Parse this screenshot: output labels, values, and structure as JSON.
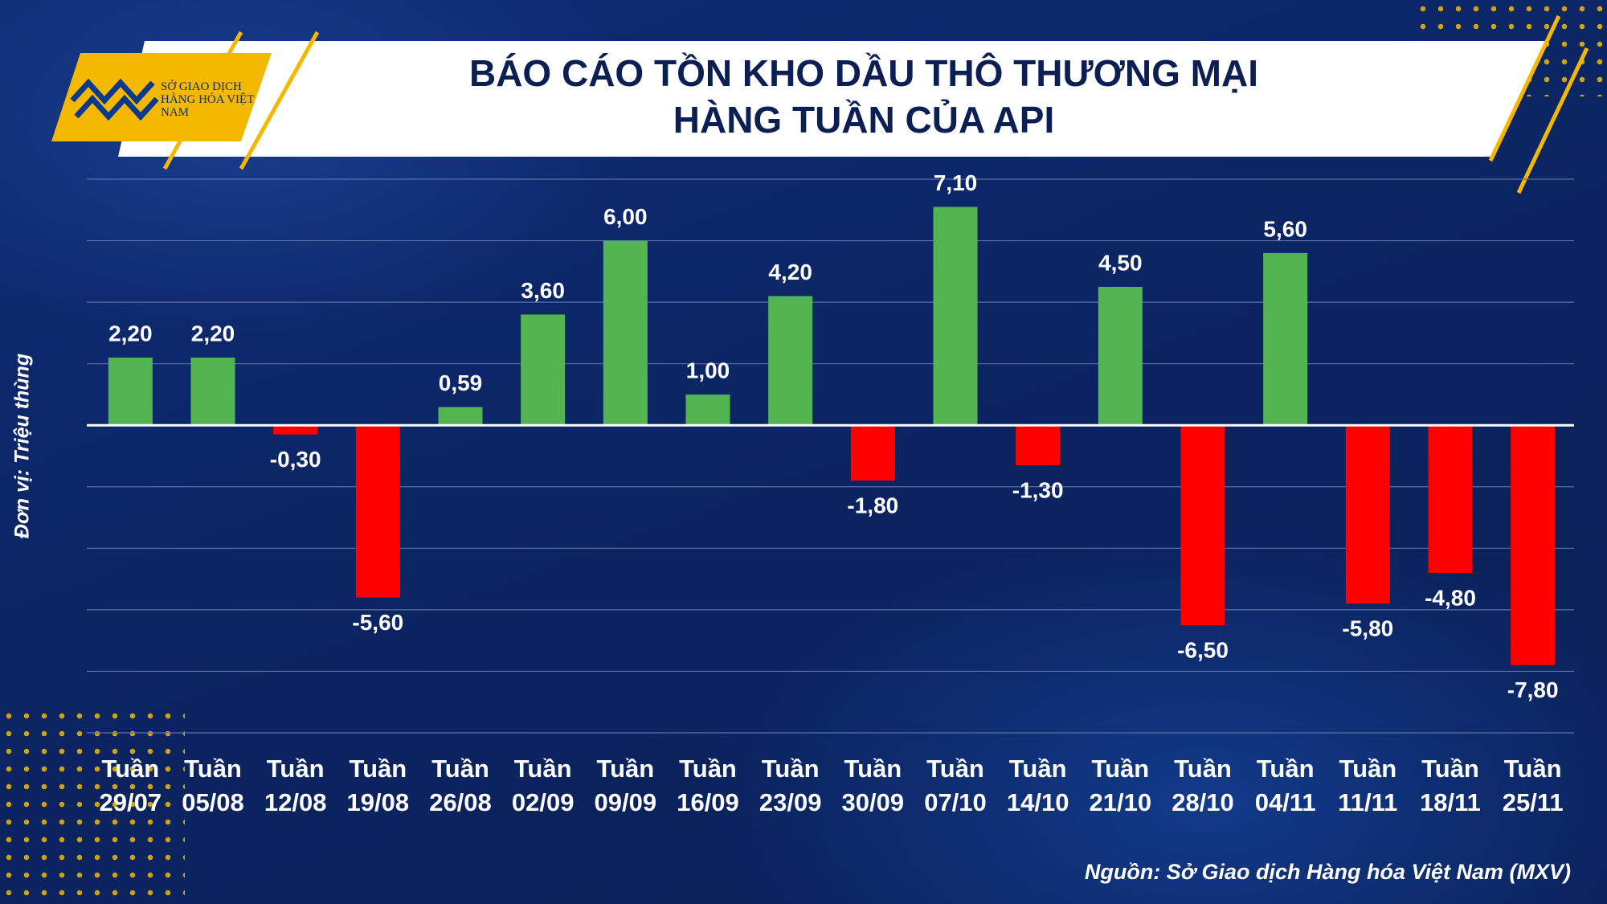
{
  "logo_text": "SỞ GIAO DỊCH HÀNG HÓA VIỆT NAM",
  "chart_data": {
    "type": "bar",
    "title": "BÁO CÁO TỒN KHO DẦU THÔ THƯƠNG MẠI\nHÀNG TUẦN CỦA API",
    "y_label": "Đơn vị: Triệu thùng",
    "source": "Nguồn: Sở Giao dịch Hàng hóa Việt Nam (MXV)",
    "categories": [
      "Tuần 29/07",
      "Tuần 05/08",
      "Tuần 12/08",
      "Tuần 19/08",
      "Tuần 26/08",
      "Tuần 02/09",
      "Tuần 09/09",
      "Tuần 16/09",
      "Tuần 23/09",
      "Tuần 30/09",
      "Tuần 07/10",
      "Tuần 14/10",
      "Tuần 21/10",
      "Tuần 28/10",
      "Tuần 04/11",
      "Tuần 11/11",
      "Tuần 18/11",
      "Tuần 25/11"
    ],
    "values": [
      2.2,
      2.2,
      -0.3,
      -5.6,
      0.59,
      3.6,
      6.0,
      1.0,
      4.2,
      -1.8,
      7.1,
      -1.3,
      4.5,
      -6.5,
      5.6,
      -5.8,
      -4.8,
      -7.8
    ],
    "value_labels": [
      "2,20",
      "2,20",
      "-0,30",
      "-5,60",
      "0,59",
      "3,60",
      "6,00",
      "1,00",
      "4,20",
      "-1,80",
      "7,10",
      "-1,30",
      "4,50",
      "-6,50",
      "5,60",
      "-5,80",
      "-4,80",
      "-7,80"
    ],
    "positive_color": "#52b552",
    "negative_color": "#ff0000",
    "ylim": [
      -10,
      8
    ],
    "yticks": [
      -10,
      -8,
      -6,
      -4,
      -2,
      0,
      2,
      4,
      6,
      8
    ],
    "grid": true
  }
}
